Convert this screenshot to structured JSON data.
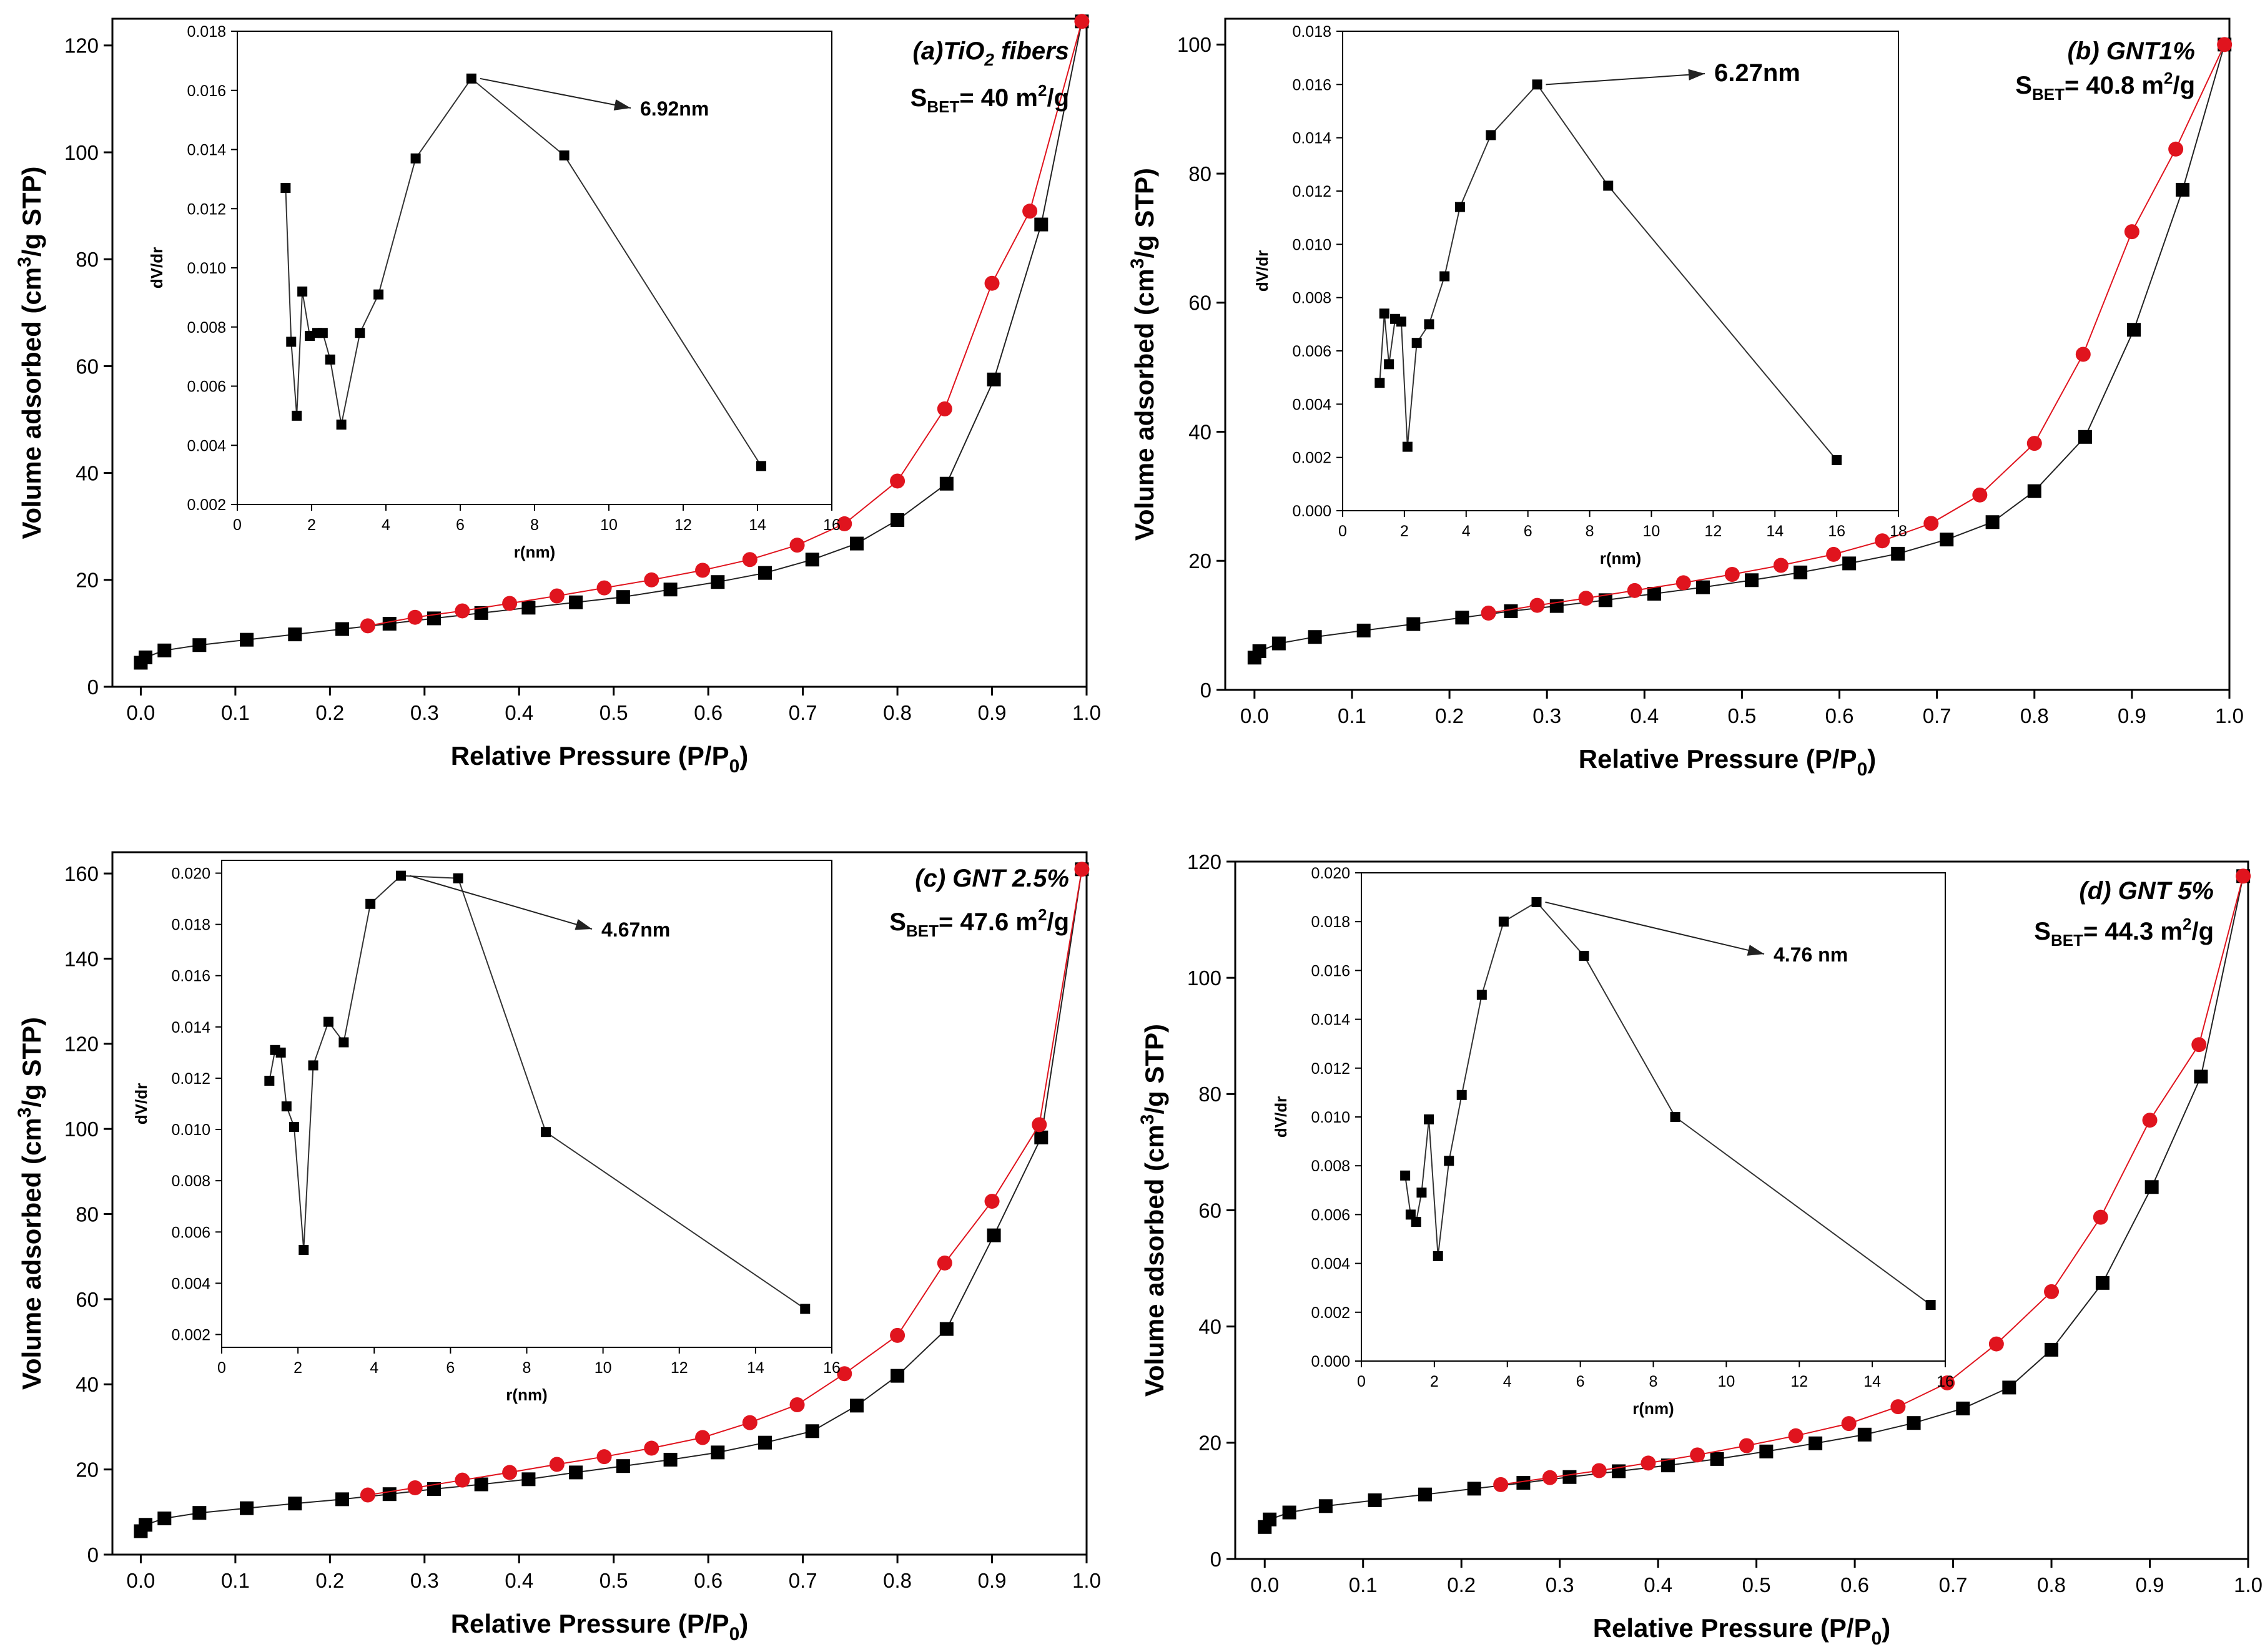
{
  "chart_data": [
    {
      "type": "line",
      "panel_label": "(a)TiO",
      "panel_label_sub": "2",
      "panel_label_tail": " fibers",
      "sbet_value": "= 40 m",
      "sbet_unit_sup": "2",
      "sbet_unit_tail": "/g",
      "main": {
        "xlabel": "Relative Pressure (P/P",
        "xlabel_sub": "0",
        "xlabel_tail": ")",
        "ylabel": "Volume adsorbed (cm",
        "ylabel_sup": "3",
        "ylabel_tail": "/g STP)",
        "xlim": [
          -0.03,
          1.0
        ],
        "ylim": [
          0,
          125
        ],
        "xticks": [
          "0.0",
          "0.1",
          "0.2",
          "0.3",
          "0.4",
          "0.5",
          "0.6",
          "0.7",
          "0.8",
          "0.9",
          "1.0"
        ],
        "yticks": [
          "0",
          "20",
          "40",
          "60",
          "80",
          "100",
          "120"
        ],
        "series": [
          {
            "color": "#000000",
            "marker": "square",
            "x": [
              0.0,
              0.005,
              0.025,
              0.062,
              0.112,
              0.163,
              0.213,
              0.263,
              0.31,
              0.36,
              0.41,
              0.46,
              0.51,
              0.56,
              0.61,
              0.66,
              0.71,
              0.757,
              0.8,
              0.852,
              0.902,
              0.952,
              0.995
            ],
            "y": [
              4.5,
              5.5,
              6.8,
              7.8,
              8.8,
              9.8,
              10.8,
              11.8,
              12.8,
              13.8,
              14.8,
              15.8,
              16.8,
              18.2,
              19.6,
              21.3,
              23.8,
              26.8,
              31.2,
              38.0,
              57.5,
              86.5,
              124.5
            ]
          },
          {
            "color": "#e0141e",
            "marker": "circle",
            "x": [
              0.24,
              0.29,
              0.34,
              0.39,
              0.44,
              0.49,
              0.54,
              0.594,
              0.644,
              0.694,
              0.744,
              0.8,
              0.85,
              0.9,
              0.94,
              0.995
            ],
            "y": [
              11.4,
              13.0,
              14.2,
              15.6,
              17.0,
              18.5,
              20.0,
              21.8,
              23.8,
              26.5,
              30.5,
              38.5,
              52.0,
              75.5,
              89.0,
              124.5
            ]
          }
        ]
      },
      "inset": {
        "type": "line",
        "xlabel": "r(nm)",
        "ylabel": "dV/dr",
        "xlim": [
          0,
          16
        ],
        "ylim": [
          0.002,
          0.018
        ],
        "xticks": [
          "0",
          "2",
          "4",
          "6",
          "8",
          "10",
          "12",
          "14",
          "16"
        ],
        "yticks": [
          "0.002",
          "0.004",
          "0.006",
          "0.008",
          "0.010",
          "0.012",
          "0.014",
          "0.016",
          "0.018"
        ],
        "x": [
          1.3,
          1.45,
          1.6,
          1.75,
          1.95,
          2.15,
          2.3,
          2.5,
          2.8,
          3.3,
          3.8,
          4.8,
          6.3,
          8.8,
          14.1
        ],
        "y": [
          0.0127,
          0.0075,
          0.005,
          0.0092,
          0.0077,
          0.0078,
          0.0078,
          0.0069,
          0.0047,
          0.0078,
          0.0091,
          0.0137,
          0.0164,
          0.0138,
          0.0033
        ],
        "annotation": "6.92nm"
      }
    },
    {
      "type": "line",
      "panel_label": "(b) GNT1%",
      "panel_label_sub": "",
      "panel_label_tail": "",
      "sbet_value": "= 40.8 m",
      "sbet_unit_sup": "2",
      "sbet_unit_tail": "/g",
      "main": {
        "xlabel": "Relative Pressure (P/P",
        "xlabel_sub": "0",
        "xlabel_tail": ")",
        "ylabel": "Volume adsorbed (cm",
        "ylabel_sup": "3",
        "ylabel_tail": "/g STP)",
        "xlim": [
          -0.03,
          1.0
        ],
        "ylim": [
          0,
          104
        ],
        "xticks": [
          "0.0",
          "0.1",
          "0.2",
          "0.3",
          "0.4",
          "0.5",
          "0.6",
          "0.7",
          "0.8",
          "0.9",
          "1.0"
        ],
        "yticks": [
          "0",
          "20",
          "40",
          "60",
          "80",
          "100"
        ],
        "series": [
          {
            "color": "#000000",
            "marker": "square",
            "x": [
              0.0,
              0.005,
              0.025,
              0.062,
              0.112,
              0.163,
              0.213,
              0.263,
              0.31,
              0.36,
              0.41,
              0.46,
              0.51,
              0.56,
              0.61,
              0.66,
              0.71,
              0.757,
              0.8,
              0.852,
              0.902,
              0.952,
              0.995
            ],
            "y": [
              5.0,
              6.0,
              7.2,
              8.2,
              9.2,
              10.2,
              11.2,
              12.2,
              13.0,
              13.9,
              14.9,
              15.9,
              17.0,
              18.2,
              19.6,
              21.1,
              23.3,
              26.0,
              30.8,
              39.2,
              55.8,
              77.5,
              100.0
            ]
          },
          {
            "color": "#e0141e",
            "marker": "circle",
            "x": [
              0.24,
              0.29,
              0.34,
              0.39,
              0.44,
              0.49,
              0.54,
              0.594,
              0.644,
              0.694,
              0.744,
              0.8,
              0.85,
              0.9,
              0.945,
              0.995
            ],
            "y": [
              11.9,
              13.1,
              14.2,
              15.4,
              16.6,
              17.9,
              19.3,
              21.0,
              23.1,
              25.8,
              30.2,
              38.2,
              52.0,
              71.0,
              83.8,
              100.0
            ]
          }
        ]
      },
      "inset": {
        "type": "line",
        "xlabel": "r(nm)",
        "ylabel": "dV/dr",
        "xlim": [
          0,
          18
        ],
        "ylim": [
          0.0,
          0.018
        ],
        "xticks": [
          "0",
          "2",
          "4",
          "6",
          "8",
          "10",
          "12",
          "14",
          "16",
          "18"
        ],
        "yticks": [
          "0.000",
          "0.002",
          "0.004",
          "0.006",
          "0.008",
          "0.010",
          "0.012",
          "0.014",
          "0.016",
          "0.018"
        ],
        "x": [
          1.2,
          1.35,
          1.5,
          1.7,
          1.9,
          2.1,
          2.4,
          2.8,
          3.3,
          3.8,
          4.8,
          6.3,
          8.6,
          16.0
        ],
        "y": [
          0.0048,
          0.0074,
          0.0055,
          0.0072,
          0.0071,
          0.0024,
          0.0063,
          0.007,
          0.0088,
          0.0114,
          0.0141,
          0.016,
          0.0122,
          0.0019
        ],
        "annotation": "6.27nm"
      }
    },
    {
      "type": "line",
      "panel_label": "(c) GNT 2.5%",
      "panel_label_sub": "",
      "panel_label_tail": "",
      "sbet_value": "= 47.6 m",
      "sbet_unit_sup": "2",
      "sbet_unit_tail": "/g",
      "main": {
        "xlabel": "Relative Pressure (P/P",
        "xlabel_sub": "0",
        "xlabel_tail": ")",
        "ylabel": "Volume adsorbed (cm",
        "ylabel_sup": "3",
        "ylabel_tail": "/g STP)",
        "xlim": [
          -0.03,
          1.0
        ],
        "ylim": [
          0,
          165
        ],
        "xticks": [
          "0.0",
          "0.1",
          "0.2",
          "0.3",
          "0.4",
          "0.5",
          "0.6",
          "0.7",
          "0.8",
          "0.9",
          "1.0"
        ],
        "yticks": [
          "0",
          "20",
          "40",
          "60",
          "80",
          "100",
          "120",
          "140",
          "160"
        ],
        "series": [
          {
            "color": "#000000",
            "marker": "square",
            "x": [
              0.0,
              0.005,
              0.025,
              0.062,
              0.112,
              0.163,
              0.213,
              0.263,
              0.31,
              0.36,
              0.41,
              0.46,
              0.51,
              0.56,
              0.61,
              0.66,
              0.71,
              0.757,
              0.8,
              0.852,
              0.902,
              0.952,
              0.995
            ],
            "y": [
              5.5,
              7.0,
              8.5,
              9.8,
              10.9,
              12.0,
              13.0,
              14.2,
              15.4,
              16.5,
              17.7,
              19.3,
              20.8,
              22.3,
              24.0,
              26.3,
              29.0,
              35.0,
              42.0,
              53.0,
              75.0,
              98.0,
              161.0
            ]
          },
          {
            "color": "#e0141e",
            "marker": "circle",
            "x": [
              0.24,
              0.29,
              0.34,
              0.39,
              0.44,
              0.49,
              0.54,
              0.594,
              0.644,
              0.694,
              0.744,
              0.8,
              0.85,
              0.9,
              0.95,
              0.995
            ],
            "y": [
              14.0,
              15.7,
              17.5,
              19.3,
              21.2,
              23.0,
              25.0,
              27.5,
              31.0,
              35.2,
              42.5,
              51.5,
              68.5,
              83.0,
              101.0,
              161.0
            ]
          }
        ]
      },
      "inset": {
        "type": "line",
        "xlabel": "r(nm)",
        "ylabel": "dV/dr",
        "xlim": [
          0,
          16
        ],
        "ylim": [
          0.0015,
          0.0205
        ],
        "xticks": [
          "0",
          "2",
          "4",
          "6",
          "8",
          "10",
          "12",
          "14",
          "16"
        ],
        "yticks": [
          "0.002",
          "0.004",
          "0.006",
          "0.008",
          "0.010",
          "0.012",
          "0.014",
          "0.016",
          "0.018",
          "0.020"
        ],
        "x": [
          1.25,
          1.4,
          1.55,
          1.7,
          1.9,
          2.15,
          2.4,
          2.8,
          3.2,
          3.9,
          4.7,
          6.2,
          8.5,
          15.3
        ],
        "y": [
          0.0119,
          0.0131,
          0.013,
          0.0109,
          0.0101,
          0.0053,
          0.0125,
          0.0142,
          0.0134,
          0.0188,
          0.0199,
          0.0198,
          0.0099,
          0.003
        ],
        "annotation": "4.67nm"
      }
    },
    {
      "type": "line",
      "panel_label": "(d) GNT 5%",
      "panel_label_sub": "",
      "panel_label_tail": "",
      "sbet_value": "= 44.3 m",
      "sbet_unit_sup": "2",
      "sbet_unit_tail": "/g",
      "main": {
        "xlabel": "Relative Pressure (P/P",
        "xlabel_sub": "0",
        "xlabel_tail": ")",
        "ylabel": "Volume adsorbed (cm",
        "ylabel_sup": "3",
        "ylabel_tail": "/g STP)",
        "xlim": [
          -0.03,
          1.0
        ],
        "ylim": [
          0,
          120
        ],
        "xticks": [
          "0.0",
          "0.1",
          "0.2",
          "0.3",
          "0.4",
          "0.5",
          "0.6",
          "0.7",
          "0.8",
          "0.9",
          "1.0"
        ],
        "yticks": [
          "0",
          "20",
          "40",
          "60",
          "80",
          "100",
          "120"
        ],
        "series": [
          {
            "color": "#000000",
            "marker": "square",
            "x": [
              0.0,
              0.005,
              0.025,
              0.062,
              0.112,
              0.163,
              0.213,
              0.263,
              0.31,
              0.36,
              0.41,
              0.46,
              0.51,
              0.56,
              0.61,
              0.66,
              0.71,
              0.757,
              0.8,
              0.852,
              0.902,
              0.952,
              0.995
            ],
            "y": [
              5.5,
              6.8,
              8.0,
              9.1,
              10.1,
              11.1,
              12.1,
              13.1,
              14.1,
              15.1,
              16.1,
              17.2,
              18.5,
              19.9,
              21.4,
              23.4,
              25.9,
              29.5,
              36.0,
              47.5,
              64.0,
              83.0,
              117.5
            ]
          },
          {
            "color": "#e0141e",
            "marker": "circle",
            "x": [
              0.24,
              0.29,
              0.34,
              0.39,
              0.44,
              0.49,
              0.54,
              0.594,
              0.644,
              0.694,
              0.744,
              0.8,
              0.85,
              0.9,
              0.95,
              0.995
            ],
            "y": [
              12.8,
              14.0,
              15.2,
              16.5,
              17.9,
              19.5,
              21.2,
              23.3,
              26.2,
              30.3,
              37.0,
              46.0,
              58.8,
              75.5,
              88.5,
              117.5
            ]
          }
        ]
      },
      "inset": {
        "type": "line",
        "xlabel": "r(nm)",
        "ylabel": "dV/dr",
        "xlim": [
          0,
          16
        ],
        "ylim": [
          0.0,
          0.02
        ],
        "xticks": [
          "0",
          "2",
          "4",
          "6",
          "8",
          "10",
          "12",
          "14",
          "16"
        ],
        "yticks": [
          "0.000",
          "0.002",
          "0.004",
          "0.006",
          "0.008",
          "0.010",
          "0.012",
          "0.014",
          "0.016",
          "0.018",
          "0.020"
        ],
        "x": [
          1.2,
          1.35,
          1.5,
          1.65,
          1.85,
          2.1,
          2.4,
          2.75,
          3.3,
          3.9,
          4.8,
          6.1,
          8.6,
          15.6
        ],
        "y": [
          0.0076,
          0.006,
          0.0057,
          0.0069,
          0.0099,
          0.0043,
          0.0082,
          0.0109,
          0.015,
          0.018,
          0.0188,
          0.0166,
          0.01,
          0.0023
        ],
        "annotation": "4.76 nm"
      }
    }
  ]
}
